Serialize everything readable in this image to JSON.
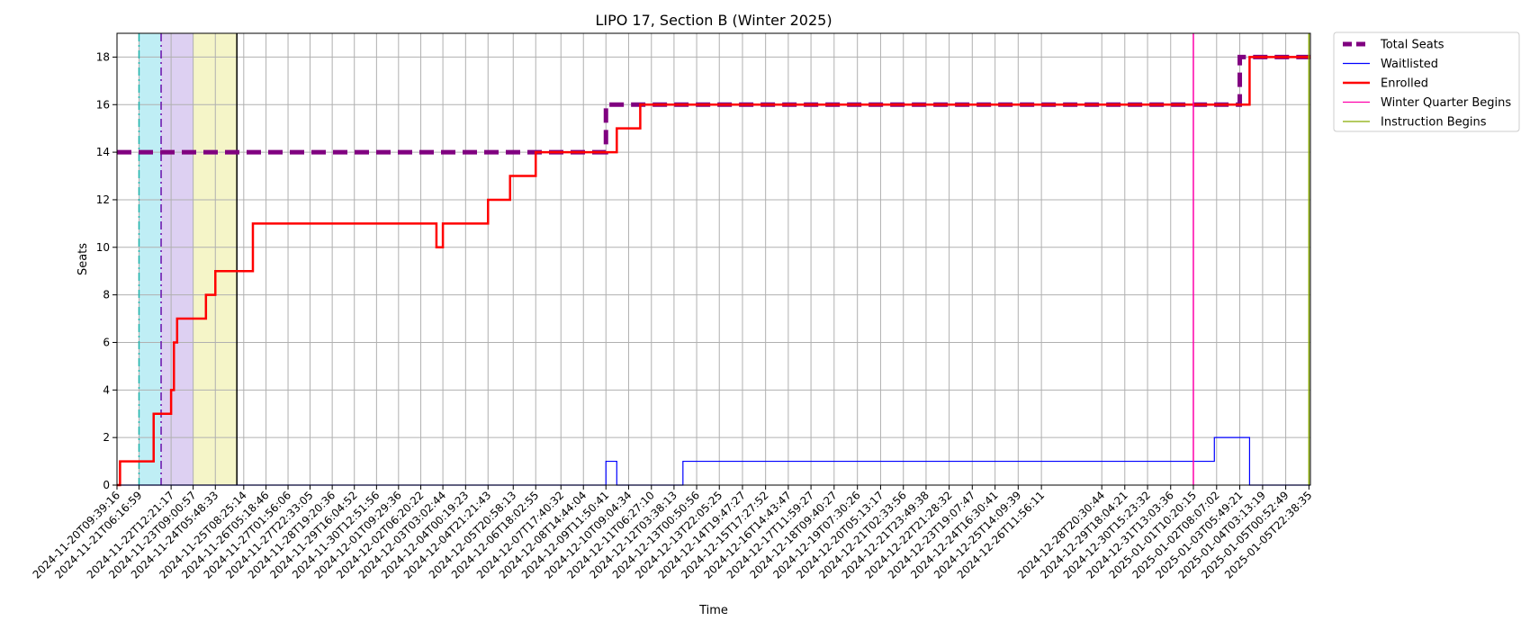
{
  "chart_data": {
    "type": "line",
    "title": "LIPO 17, Section B (Winter 2025)",
    "xlabel": "Time",
    "ylabel": "Seats",
    "ylim": [
      0,
      19
    ],
    "yticks": [
      0,
      2,
      4,
      6,
      8,
      10,
      12,
      14,
      16,
      18
    ],
    "grid": true,
    "legend_position": "outside-top-right",
    "xlim": [
      "2024-11-20T09:39:16",
      "2025-01-06T00:00:00"
    ],
    "x_ticks": [
      "2024-11-20T09:39:16",
      "2024-11-21T06:16:59",
      "2024-11-22T12:21:17",
      "2024-11-23T09:00:57",
      "2024-11-24T05:48:33",
      "2024-11-25T08:25:14",
      "2024-11-26T05:18:46",
      "2024-11-27T01:56:06",
      "2024-11-27T22:33:05",
      "2024-11-28T19:20:36",
      "2024-11-29T16:04:52",
      "2024-11-30T12:51:56",
      "2024-12-01T09:29:36",
      "2024-12-02T06:20:22",
      "2024-12-03T03:02:44",
      "2024-12-04T00:19:23",
      "2024-12-04T21:21:43",
      "2024-12-05T20:58:13",
      "2024-12-06T18:02:55",
      "2024-12-07T17:40:32",
      "2024-12-08T14:44:04",
      "2024-12-09T11:50:41",
      "2024-12-10T09:04:34",
      "2024-12-11T06:27:10",
      "2024-12-12T03:38:13",
      "2024-12-13T00:50:56",
      "2024-12-13T22:05:25",
      "2024-12-14T19:47:27",
      "2024-12-15T17:27:52",
      "2024-12-16T14:43:47",
      "2024-12-17T11:59:27",
      "2024-12-18T09:40:27",
      "2024-12-19T07:30:26",
      "2024-12-20T05:13:17",
      "2024-12-21T02:33:56",
      "2024-12-21T23:49:38",
      "2024-12-22T21:28:32",
      "2024-12-23T19:07:47",
      "2024-12-24T16:30:41",
      "2024-12-25T14:09:39",
      "2024-12-26T11:56:11",
      "2024-12-28T20:30:44",
      "2024-12-29T18:04:21",
      "2024-12-30T15:23:32",
      "2024-12-31T13:03:36",
      "2025-01-01T10:20:15",
      "2025-01-02T08:07:02",
      "2025-01-03T05:49:21",
      "2025-01-04T03:13:19",
      "2025-01-05T00:52:49",
      "2025-01-05T22:38:35"
    ],
    "series": [
      {
        "name": "Total Seats",
        "color": "#800080",
        "style": "dashed-thick",
        "points": [
          [
            "2024-11-20T09:39:16",
            14
          ],
          [
            "2024-12-09T11:50:41",
            14
          ],
          [
            "2024-12-09T11:50:41",
            16
          ],
          [
            "2025-01-03T05:49:21",
            16
          ],
          [
            "2025-01-03T05:49:21",
            18
          ],
          [
            "2025-01-06T00:00:00",
            18
          ]
        ]
      },
      {
        "name": "Waitlisted",
        "color": "#0000ff",
        "style": "solid-thin",
        "points": [
          [
            "2024-11-20T09:39:16",
            0
          ],
          [
            "2024-12-09T11:50:41",
            0
          ],
          [
            "2024-12-09T11:50:41",
            1
          ],
          [
            "2024-12-09T22:00:00",
            1
          ],
          [
            "2024-12-09T22:00:00",
            0
          ],
          [
            "2024-12-12T12:00:00",
            0
          ],
          [
            "2024-12-12T12:00:00",
            1
          ],
          [
            "2025-01-02T06:00:00",
            1
          ],
          [
            "2025-01-02T06:00:00",
            2
          ],
          [
            "2025-01-03T15:00:00",
            2
          ],
          [
            "2025-01-03T15:00:00",
            0
          ],
          [
            "2025-01-06T00:00:00",
            0
          ]
        ]
      },
      {
        "name": "Enrolled",
        "color": "#ff0000",
        "style": "solid-thick",
        "points": [
          [
            "2024-11-20T09:39:16",
            0
          ],
          [
            "2024-11-20T12:30:00",
            0
          ],
          [
            "2024-11-20T12:30:00",
            1
          ],
          [
            "2024-11-21T20:00:00",
            1
          ],
          [
            "2024-11-21T20:00:00",
            3
          ],
          [
            "2024-11-22T12:21:17",
            3
          ],
          [
            "2024-11-22T12:21:17",
            4
          ],
          [
            "2024-11-22T15:00:00",
            4
          ],
          [
            "2024-11-22T15:00:00",
            6
          ],
          [
            "2024-11-22T18:00:00",
            6
          ],
          [
            "2024-11-22T18:00:00",
            7
          ],
          [
            "2024-11-23T21:00:00",
            7
          ],
          [
            "2024-11-23T21:00:00",
            8
          ],
          [
            "2024-11-24T05:48:33",
            8
          ],
          [
            "2024-11-24T05:48:33",
            9
          ],
          [
            "2024-11-25T17:00:00",
            9
          ],
          [
            "2024-11-25T17:00:00",
            11
          ],
          [
            "2024-12-02T21:00:00",
            11
          ],
          [
            "2024-12-02T21:00:00",
            10
          ],
          [
            "2024-12-03T03:02:44",
            10
          ],
          [
            "2024-12-03T03:02:44",
            11
          ],
          [
            "2024-12-04T21:21:43",
            11
          ],
          [
            "2024-12-04T21:21:43",
            12
          ],
          [
            "2024-12-05T18:00:00",
            12
          ],
          [
            "2024-12-05T18:00:00",
            13
          ],
          [
            "2024-12-06T18:02:55",
            13
          ],
          [
            "2024-12-06T18:02:55",
            14
          ],
          [
            "2024-12-09T22:00:00",
            14
          ],
          [
            "2024-12-09T22:00:00",
            15
          ],
          [
            "2024-12-10T20:00:00",
            15
          ],
          [
            "2024-12-10T20:00:00",
            16
          ],
          [
            "2025-01-03T15:00:00",
            16
          ],
          [
            "2025-01-03T15:00:00",
            18
          ],
          [
            "2025-01-06T00:00:00",
            18
          ]
        ]
      }
    ],
    "vertical_markers": [
      {
        "name": "Winter Quarter Begins",
        "color": "#ff00aa",
        "x": "2025-01-01T10:20:15"
      },
      {
        "name": "Instruction Begins",
        "color": "#88aa00",
        "x": "2025-01-05T22:38:35"
      }
    ],
    "shaded_regions": [
      {
        "color": "#bfeef5",
        "from": "2024-11-21T06:16:59",
        "to": "2024-11-22T03:00:00"
      },
      {
        "color": "#ddd0f2",
        "from": "2024-11-22T03:00:00",
        "to": "2024-11-23T09:00:57"
      },
      {
        "color": "#f5f5c8",
        "from": "2024-11-23T09:00:57",
        "to": "2024-11-25T02:00:00"
      }
    ],
    "region_lines": [
      {
        "color": "#20b2aa",
        "style": "dashdot",
        "x": "2024-11-21T06:16:59"
      },
      {
        "color": "#6a0dad",
        "style": "dashdot",
        "x": "2024-11-22T03:00:00"
      },
      {
        "color": "#000000",
        "style": "solid",
        "x": "2024-11-25T02:00:00"
      }
    ]
  }
}
